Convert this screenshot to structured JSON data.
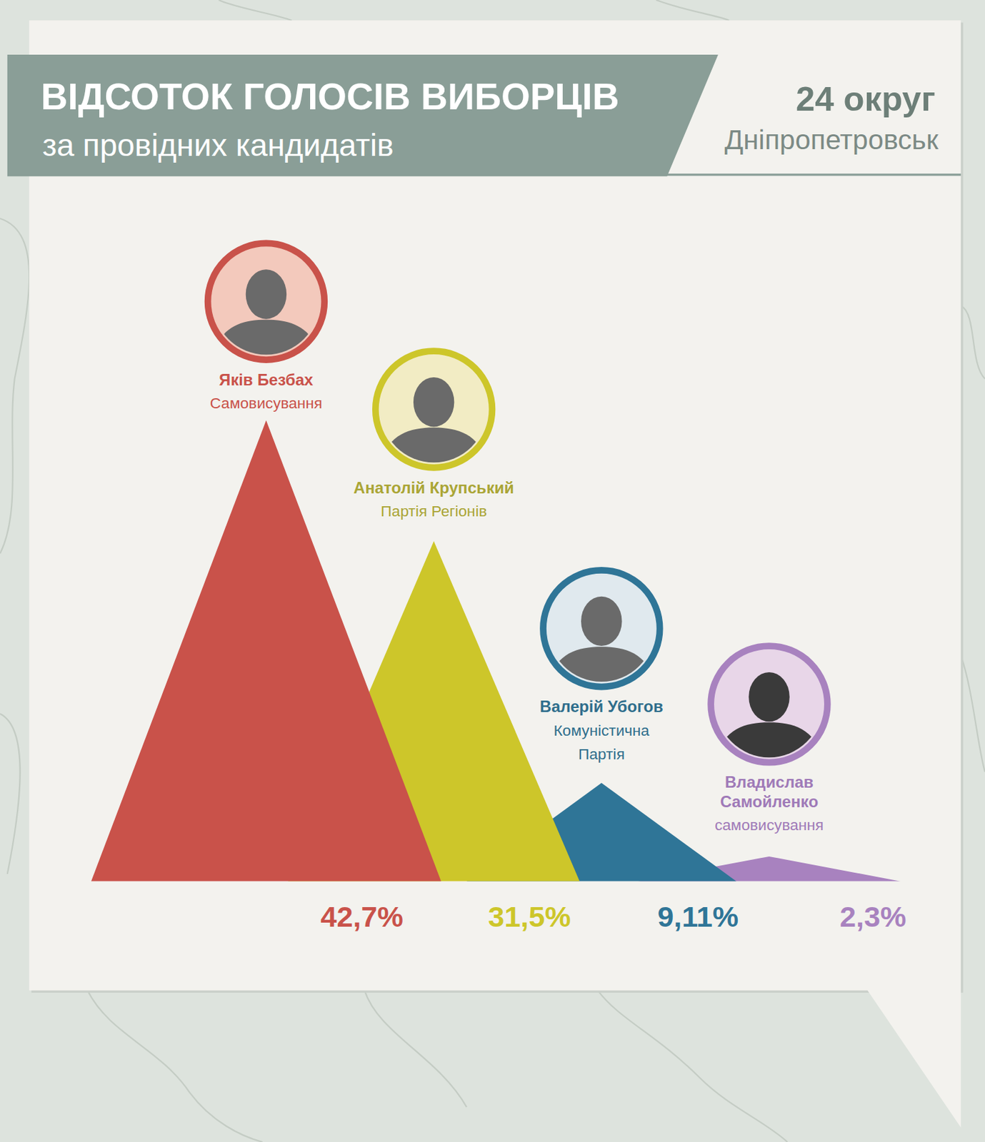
{
  "chart_data": {
    "type": "triangle",
    "title": "ВІДСОТОК ГОЛОСІВ ВИБОРЦІВ",
    "subtitle": "за провідних кандидатів",
    "district": "24 округ",
    "city": "Дніпропетровськ",
    "categories": [
      "Яків Безбах",
      "Анатолій Крупський",
      "Валерій Убогов",
      "Владислав\nСамойленко"
    ],
    "parties": [
      "Самовисування",
      "Партія Регіонів",
      "Комуністична\nПартія",
      "самовисування"
    ],
    "values": [
      42.7,
      31.5,
      9.11,
      2.3
    ],
    "value_labels": [
      "42,7%",
      "31,5%",
      "9,11%",
      "2,3%"
    ],
    "colors": [
      "#c9524a",
      "#cdc62a",
      "#2f7597",
      "#a882bf"
    ],
    "ylim": [
      0,
      42.7
    ],
    "tick_labels": false,
    "data_labels": true
  }
}
